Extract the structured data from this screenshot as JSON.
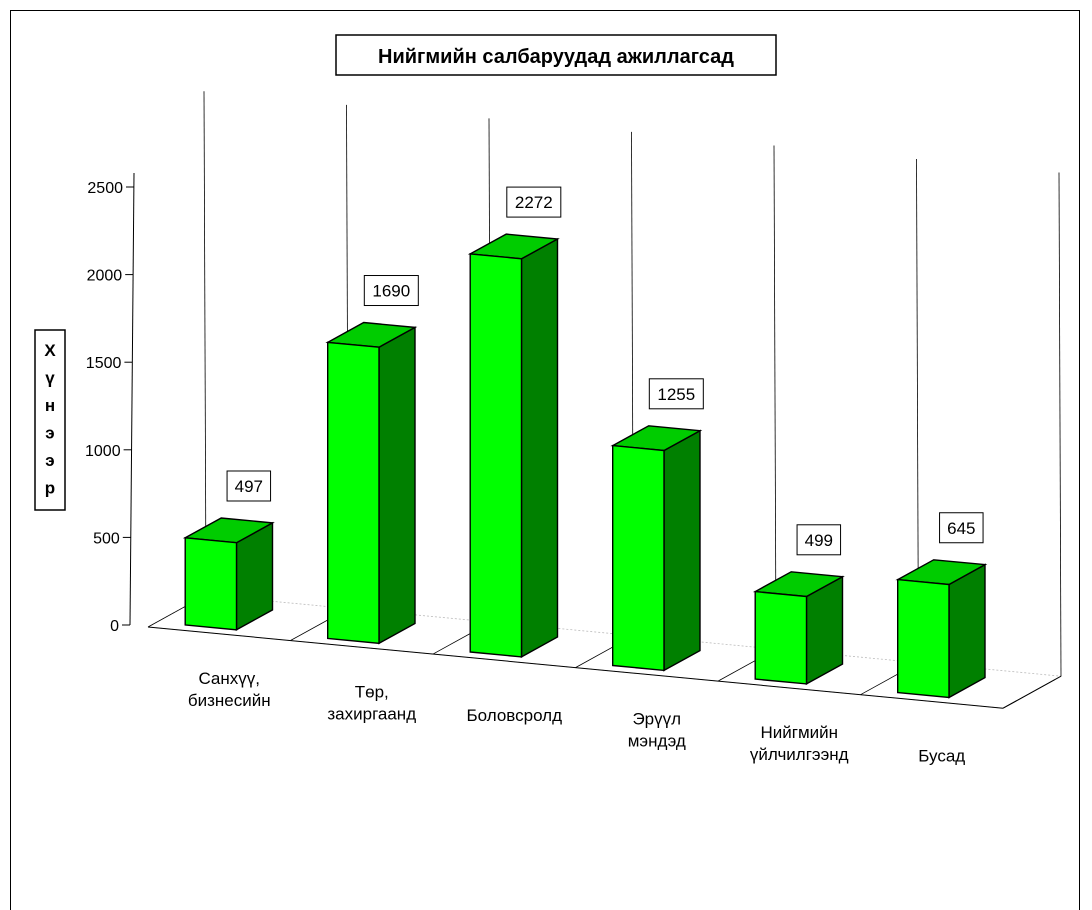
{
  "chart_data": {
    "type": "bar",
    "title": "Нийгмийн салбаруудад ажиллагсад",
    "ylabel": "Хүнээр",
    "xlabel": "",
    "categories": [
      [
        "Санхүү,",
        "бизнесийн"
      ],
      [
        "Төр,",
        "захиргаанд"
      ],
      [
        "Боловсролд"
      ],
      [
        "Эрүүл",
        "мэндэд"
      ],
      [
        "Нийгмийн",
        "үйлчилгээнд"
      ],
      [
        "Бусад"
      ]
    ],
    "values": [
      497,
      1690,
      2272,
      1255,
      499,
      645
    ],
    "ylim": [
      0,
      2500
    ],
    "yticks": [
      0,
      500,
      1000,
      1500,
      2000,
      2500
    ],
    "grid": true,
    "legend": "none",
    "style": "3d",
    "colors": {
      "bar_front": "#00ff00",
      "bar_side": "#008000",
      "bar_top": "#00cc00",
      "outline": "#000000"
    }
  }
}
